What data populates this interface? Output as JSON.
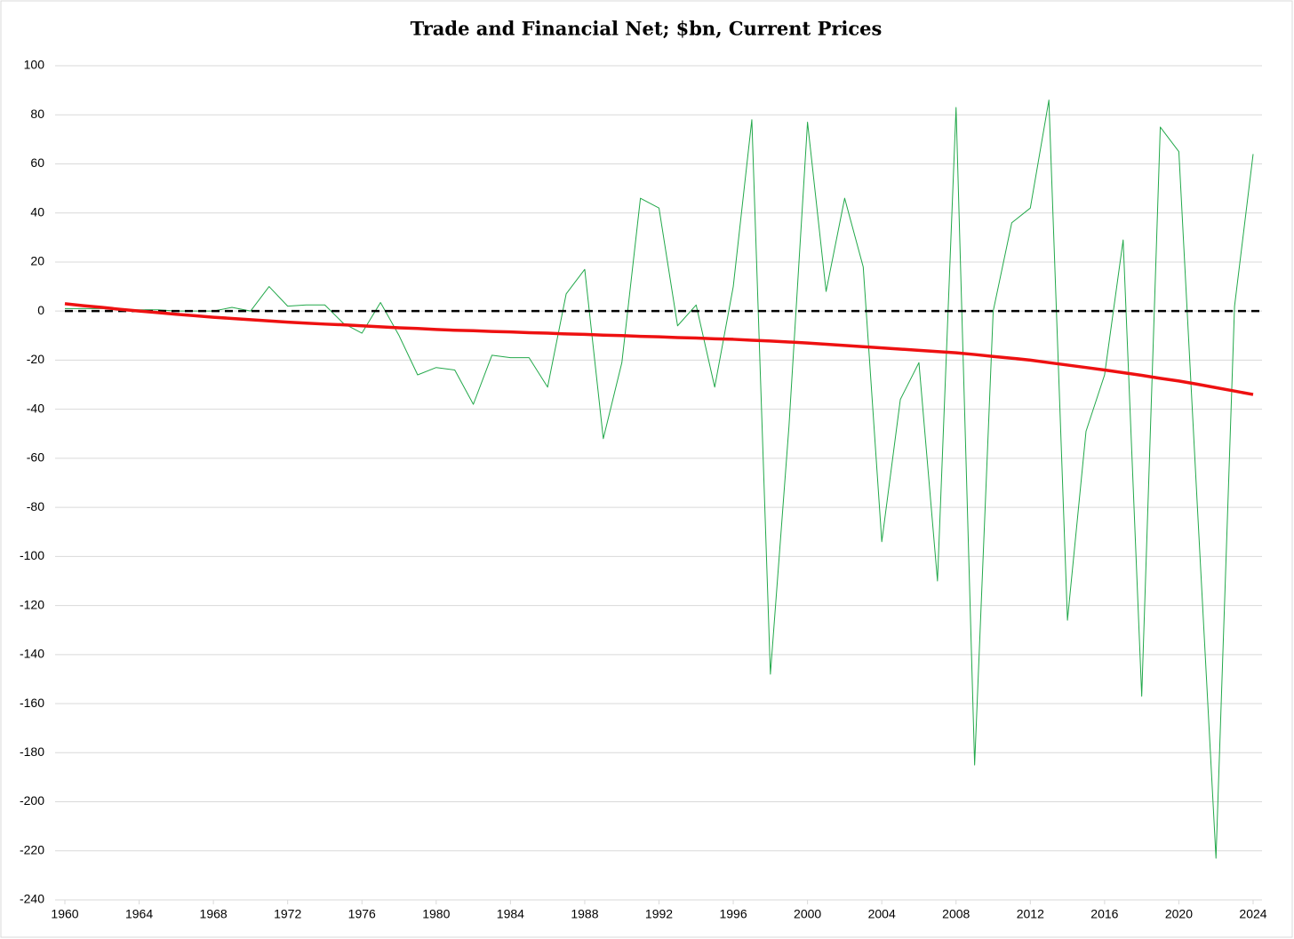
{
  "chart_data": {
    "type": "line",
    "title": "Trade and Financial Net; $bn, Current Prices",
    "x": [
      1960,
      1961,
      1962,
      1963,
      1964,
      1965,
      1966,
      1967,
      1968,
      1969,
      1970,
      1971,
      1972,
      1973,
      1974,
      1975,
      1976,
      1977,
      1978,
      1979,
      1980,
      1981,
      1982,
      1983,
      1984,
      1985,
      1986,
      1987,
      1988,
      1989,
      1990,
      1991,
      1992,
      1993,
      1994,
      1995,
      1996,
      1997,
      1998,
      1999,
      2000,
      2001,
      2002,
      2003,
      2004,
      2005,
      2006,
      2007,
      2008,
      2009,
      2010,
      2011,
      2012,
      2013,
      2014,
      2015,
      2016,
      2017,
      2018,
      2019,
      2020,
      2021,
      2022,
      2023,
      2024
    ],
    "series": [
      {
        "color": "#22a84a",
        "width": 1,
        "values": [
          1,
          1,
          1,
          0.5,
          0.5,
          0.5,
          0,
          0,
          0,
          1.5,
          0,
          10,
          2,
          2.5,
          2.5,
          -5,
          -9,
          3.5,
          -10,
          -26,
          -23,
          -24,
          -38,
          -18,
          -19,
          -19,
          -31,
          7,
          17,
          -52,
          -21,
          46,
          42,
          -6,
          2.5,
          -31,
          10,
          78,
          -148,
          -47,
          77,
          8,
          46,
          18,
          -94,
          -36,
          -21,
          -110,
          83,
          -185,
          0,
          36,
          42,
          86,
          -126,
          -49,
          -26,
          29,
          -157,
          75,
          65,
          -80,
          -223,
          2,
          64
        ]
      },
      {
        "color": "#ee1111",
        "width": 3.5,
        "values": [
          3,
          2.2,
          1.5,
          0.7,
          0,
          -0.6,
          -1.3,
          -1.9,
          -2.5,
          -3,
          -3.5,
          -4,
          -4.5,
          -4.9,
          -5.3,
          -5.6,
          -6,
          -6.4,
          -6.8,
          -7.1,
          -7.5,
          -7.8,
          -8,
          -8.3,
          -8.5,
          -8.8,
          -9,
          -9.3,
          -9.5,
          -9.8,
          -10,
          -10.3,
          -10.5,
          -10.8,
          -11,
          -11.3,
          -11.5,
          -11.9,
          -12.2,
          -12.6,
          -13,
          -13.5,
          -14,
          -14.5,
          -15,
          -15.5,
          -16,
          -16.5,
          -17,
          -17.7,
          -18.5,
          -19.2,
          -20,
          -21,
          -22,
          -23,
          -24,
          -25.1,
          -26.2,
          -27.4,
          -28.5,
          -29.8,
          -31.2,
          -32.6,
          -34
        ]
      }
    ],
    "reference_line": {
      "value": 0,
      "color": "#000000",
      "dashed": true
    },
    "xlim": [
      1960,
      2024
    ],
    "xticks": [
      1960,
      1964,
      1968,
      1972,
      1976,
      1980,
      1984,
      1988,
      1992,
      1996,
      2000,
      2004,
      2008,
      2012,
      2016,
      2020,
      2024
    ],
    "ylim": [
      -240,
      100
    ],
    "yticks": [
      -240,
      -220,
      -200,
      -180,
      -160,
      -140,
      -120,
      -100,
      -80,
      -60,
      -40,
      -20,
      0,
      20,
      40,
      60,
      80,
      100
    ],
    "grid": true
  }
}
